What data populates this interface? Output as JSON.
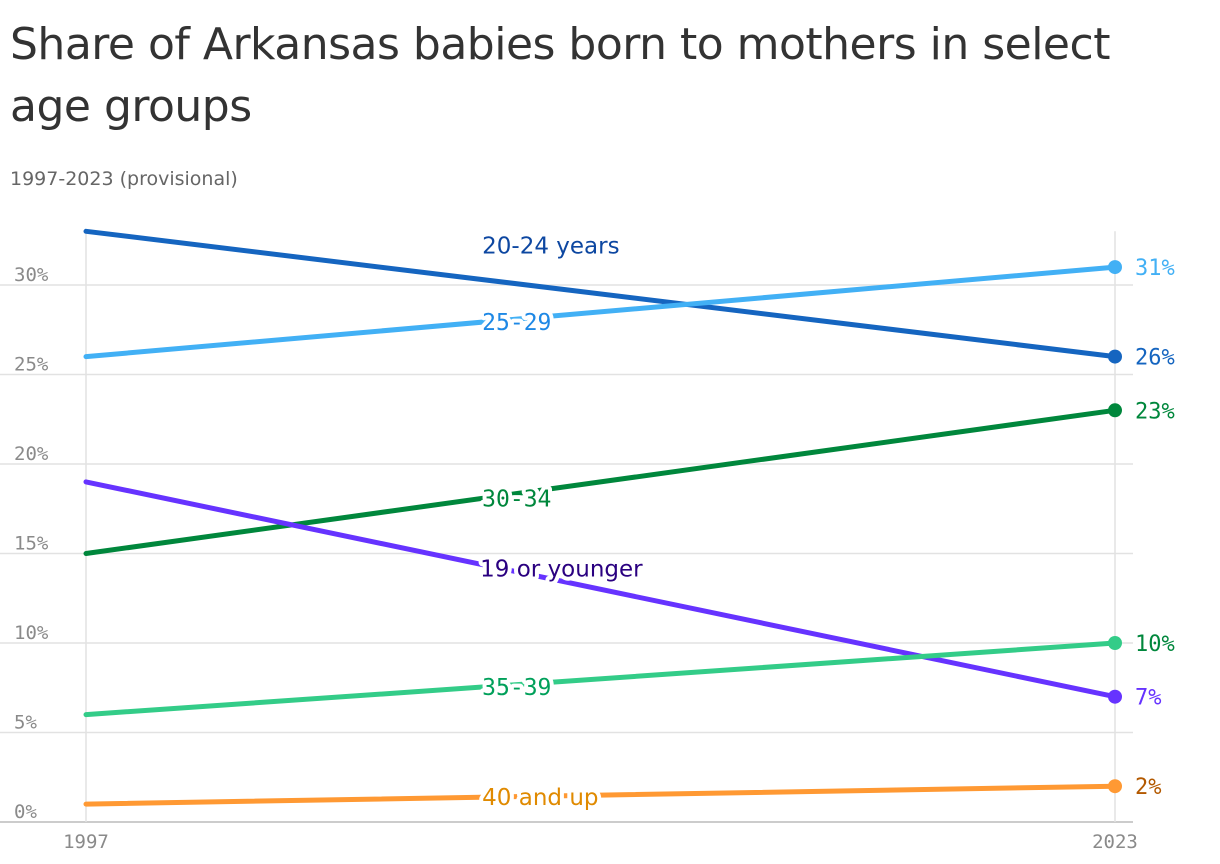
{
  "title": "Share of Arkansas babies born to mothers in select age groups",
  "subtitle": "1997-2023 (provisional)",
  "chart_data": {
    "type": "line",
    "x": [
      "1997",
      "2023"
    ],
    "xlim": [
      1997,
      2023
    ],
    "ylim": [
      0,
      33
    ],
    "y_ticks": [
      0,
      5,
      10,
      15,
      20,
      25,
      30
    ],
    "y_tick_labels": [
      "0%",
      "5%",
      "10%",
      "15%",
      "20%",
      "25%",
      "30%"
    ],
    "x_tick_labels": [
      "1997",
      "2023"
    ],
    "grid": true,
    "legend": "inline labels",
    "series": [
      {
        "name": "20-24 years",
        "values": [
          33,
          26
        ],
        "end_label": "26%",
        "color": "#1565c0",
        "label_color": "#0d47a1",
        "mono": false
      },
      {
        "name": "25-29",
        "values": [
          26,
          31
        ],
        "end_label": "31%",
        "color": "#42b0f5",
        "label_color": "#1e88e5",
        "mono": true
      },
      {
        "name": "30-34",
        "values": [
          15,
          23
        ],
        "end_label": "23%",
        "color": "#00873c",
        "label_color": "#00873c",
        "mono": true
      },
      {
        "name": "19 or younger",
        "values": [
          19,
          7
        ],
        "end_label": "7%",
        "color": "#6633ff",
        "label_color": "#2a0080",
        "end_color": "#6633ff",
        "mono": false
      },
      {
        "name": "35-39",
        "values": [
          6,
          10
        ],
        "end_label": "10%",
        "color": "#33cc88",
        "label_color": "#00a05a",
        "end_color": "#00873c",
        "mono": true
      },
      {
        "name": "40 and up",
        "values": [
          1,
          2
        ],
        "end_label": "2%",
        "color": "#ff9933",
        "label_color": "#e08a00",
        "end_color": "#b35900",
        "mono": false
      }
    ]
  }
}
